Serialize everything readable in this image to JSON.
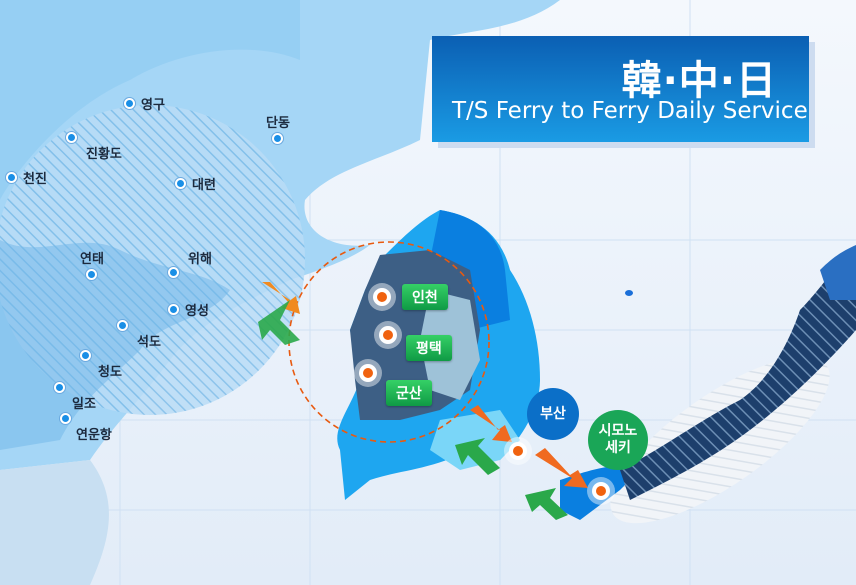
{
  "title": {
    "cjk": "韓·中·日",
    "english": "T/S Ferry to Ferry Daily Service"
  },
  "china_ports": [
    "영구",
    "진황도",
    "천진",
    "대련",
    "단동",
    "연태",
    "위해",
    "영성",
    "석도",
    "청도",
    "일조",
    "연운항"
  ],
  "korea_ports": [
    "인천",
    "평택",
    "군산"
  ],
  "busan": "부산",
  "japan_port": "시모노\n세키",
  "colors": {
    "title_bg": "#0b5fb3",
    "port_tag": "#1faa52",
    "port_dot": "#f0620f",
    "sea": "#e9f1fb",
    "land_china": "#9ed3f5",
    "korea_dark": "#3d5f85"
  }
}
